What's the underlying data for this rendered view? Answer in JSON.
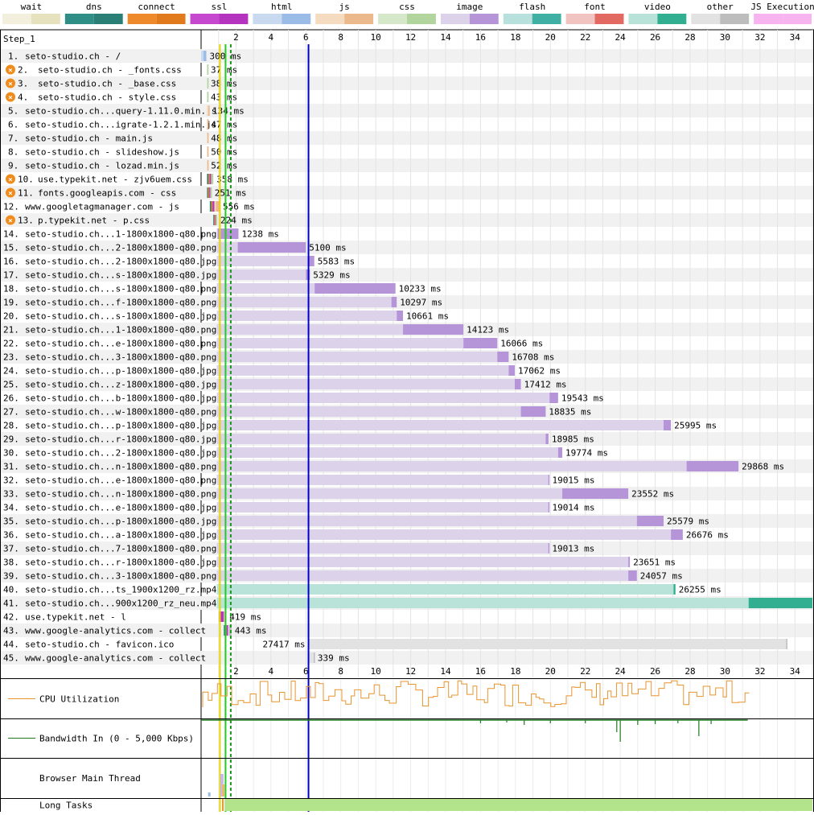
{
  "legend": [
    {
      "label": "wait",
      "light": "#f2f0dc",
      "dark": "#e6e2bd"
    },
    {
      "label": "dns",
      "light": "#2f8f86",
      "dark": "#2a7f77"
    },
    {
      "label": "connect",
      "light": "#ef8a2c",
      "dark": "#e07a1c"
    },
    {
      "label": "ssl",
      "light": "#c548cf",
      "dark": "#b534bf"
    },
    {
      "label": "html",
      "light": "#c8d9f0",
      "dark": "#9bbce6"
    },
    {
      "label": "js",
      "light": "#f5dcc0",
      "dark": "#ebb98b"
    },
    {
      "label": "css",
      "light": "#d5e8c9",
      "dark": "#b2d49d"
    },
    {
      "label": "image",
      "light": "#dcd2ea",
      "dark": "#b595d8"
    },
    {
      "label": "flash",
      "light": "#b8e0dc",
      "dark": "#3fb0a3"
    },
    {
      "label": "font",
      "light": "#f1c4c2",
      "dark": "#e26a63"
    },
    {
      "label": "video",
      "light": "#b9e2d8",
      "dark": "#32ae91"
    },
    {
      "label": "other",
      "light": "#e2e2e2",
      "dark": "#bdbdbd"
    },
    {
      "label": "JS Execution",
      "light": "#f7b4f0",
      "dark": "#f7b4f0"
    }
  ],
  "step_label": "Step_1",
  "chart_data": {
    "type": "waterfall",
    "x_axis": {
      "unit": "seconds",
      "min": 0,
      "max": 35,
      "ticks": [
        2,
        4,
        6,
        8,
        10,
        12,
        14,
        16,
        18,
        20,
        22,
        24,
        26,
        28,
        30,
        32,
        34
      ]
    },
    "markers": {
      "start_render_s": 1.08,
      "dom_interactive_s": 1.4,
      "dom_complete_s": 1.7,
      "onload_s": 6.15
    },
    "requests": [
      {
        "num": "1.",
        "label": "seto-studio.ch - /",
        "type": "html",
        "start": 0,
        "ttfb": 0.14,
        "end": 0.3,
        "duration": "300 ms",
        "blocking": false
      },
      {
        "num": "2.",
        "label": "seto-studio.ch - _fonts.css",
        "type": "css",
        "start": 0.33,
        "ttfb": 0.36,
        "end": 0.37,
        "duration": "37 ms",
        "blocking": true
      },
      {
        "num": "3.",
        "label": "seto-studio.ch - _base.css",
        "type": "css",
        "start": 0.33,
        "ttfb": 0.36,
        "end": 0.37,
        "duration": "38 ms",
        "blocking": true
      },
      {
        "num": "4.",
        "label": "seto-studio.ch - style.css",
        "type": "css",
        "start": 0.33,
        "ttfb": 0.36,
        "end": 0.37,
        "duration": "43 ms",
        "blocking": true
      },
      {
        "num": "5.",
        "label": "seto-studio.ch...query-1.11.0.min.js",
        "type": "js",
        "start": 0.33,
        "ttfb": 0.42,
        "end": 0.46,
        "duration": "134 ms",
        "blocking": false
      },
      {
        "num": "6.",
        "label": "seto-studio.ch...igrate-1.2.1.min.js",
        "type": "js",
        "start": 0.33,
        "ttfb": 0.36,
        "end": 0.38,
        "duration": "47 ms",
        "blocking": false
      },
      {
        "num": "7.",
        "label": "seto-studio.ch - main.js",
        "type": "js",
        "start": 0.33,
        "ttfb": 0.36,
        "end": 0.38,
        "duration": "48 ms",
        "blocking": false
      },
      {
        "num": "8.",
        "label": "seto-studio.ch - slideshow.js",
        "type": "js",
        "start": 0.33,
        "ttfb": 0.36,
        "end": 0.38,
        "duration": "50 ms",
        "blocking": false
      },
      {
        "num": "9.",
        "label": "seto-studio.ch - lozad.min.js",
        "type": "js",
        "start": 0.33,
        "ttfb": 0.36,
        "end": 0.38,
        "duration": "52 ms",
        "blocking": false
      },
      {
        "num": "10.",
        "label": "use.typekit.net - zjv6uem.css",
        "type": "css",
        "start": 0.34,
        "ttfb": 0.6,
        "end": 0.7,
        "duration": "358 ms",
        "blocking": true,
        "dns": [
          0.34,
          0.42
        ],
        "connect": [
          0.42,
          0.5
        ],
        "ssl": [
          0.5,
          0.58
        ]
      },
      {
        "num": "11.",
        "label": "fonts.googleapis.com - css",
        "type": "css",
        "start": 0.34,
        "ttfb": 0.55,
        "end": 0.59,
        "duration": "251 ms",
        "blocking": true,
        "dns": [
          0.34,
          0.4
        ],
        "connect": [
          0.4,
          0.47
        ],
        "ssl": [
          0.47,
          0.53
        ]
      },
      {
        "num": "12.",
        "label": "www.googletagmanager.com - js",
        "type": "js",
        "start": 0.5,
        "ttfb": 0.85,
        "end": 1.06,
        "duration": "556 ms",
        "blocking": false,
        "dns": [
          0.5,
          0.58
        ],
        "connect": [
          0.58,
          0.66
        ],
        "ssl": [
          0.66,
          0.76
        ]
      },
      {
        "num": "13.",
        "label": "p.typekit.net - p.css",
        "type": "css",
        "start": 0.7,
        "ttfb": 0.85,
        "end": 0.92,
        "duration": "224 ms",
        "blocking": true,
        "dns": [
          0.7,
          0.75
        ],
        "connect": [
          0.75,
          0.8
        ],
        "ssl": [
          0.8,
          0.84
        ]
      },
      {
        "num": "14.",
        "label": "seto-studio.ch...1-1800x1800-q80.png",
        "type": "image",
        "start": 0.9,
        "ttfb": 0.95,
        "end": 2.14,
        "duration": "1238 ms",
        "blocking": false
      },
      {
        "num": "15.",
        "label": "seto-studio.ch...2-1800x1800-q80.png",
        "type": "image",
        "start": 0.9,
        "ttfb": 2.1,
        "end": 6.0,
        "duration": "5100 ms",
        "blocking": false
      },
      {
        "num": "16.",
        "label": "seto-studio.ch...2-1800x1800-q80.jpg",
        "type": "image",
        "start": 0.9,
        "ttfb": 6.15,
        "end": 6.48,
        "duration": "5583 ms",
        "blocking": false
      },
      {
        "num": "17.",
        "label": "seto-studio.ch...s-1800x1800-q80.jpg",
        "type": "image",
        "start": 0.9,
        "ttfb": 6.0,
        "end": 6.23,
        "duration": "5329 ms",
        "blocking": false
      },
      {
        "num": "18.",
        "label": "seto-studio.ch...s-1800x1800-q80.png",
        "type": "image",
        "start": 0.9,
        "ttfb": 6.5,
        "end": 11.13,
        "duration": "10233 ms",
        "blocking": false
      },
      {
        "num": "19.",
        "label": "seto-studio.ch...f-1800x1800-q80.png",
        "type": "image",
        "start": 0.9,
        "ttfb": 10.9,
        "end": 11.2,
        "duration": "10297 ms",
        "blocking": false
      },
      {
        "num": "20.",
        "label": "seto-studio.ch...s-1800x1800-q80.jpg",
        "type": "image",
        "start": 0.9,
        "ttfb": 11.2,
        "end": 11.56,
        "duration": "10661 ms",
        "blocking": false
      },
      {
        "num": "21.",
        "label": "seto-studio.ch...1-1800x1800-q80.png",
        "type": "image",
        "start": 0.9,
        "ttfb": 11.56,
        "end": 15.02,
        "duration": "14123 ms",
        "blocking": false
      },
      {
        "num": "22.",
        "label": "seto-studio.ch...e-1800x1800-q80.png",
        "type": "image",
        "start": 0.9,
        "ttfb": 15.02,
        "end": 16.96,
        "duration": "16066 ms",
        "blocking": false
      },
      {
        "num": "23.",
        "label": "seto-studio.ch...3-1800x1800-q80.png",
        "type": "image",
        "start": 0.9,
        "ttfb": 16.96,
        "end": 17.61,
        "duration": "16708 ms",
        "blocking": false
      },
      {
        "num": "24.",
        "label": "seto-studio.ch...p-1800x1800-q80.jpg",
        "type": "image",
        "start": 0.9,
        "ttfb": 17.61,
        "end": 17.96,
        "duration": "17062 ms",
        "blocking": false
      },
      {
        "num": "25.",
        "label": "seto-studio.ch...z-1800x1800-q80.jpg",
        "type": "image",
        "start": 0.9,
        "ttfb": 17.96,
        "end": 18.31,
        "duration": "17412 ms",
        "blocking": false
      },
      {
        "num": "26.",
        "label": "seto-studio.ch...b-1800x1800-q80.jpg",
        "type": "image",
        "start": 0.9,
        "ttfb": 19.95,
        "end": 20.44,
        "duration": "19543 ms",
        "blocking": false
      },
      {
        "num": "27.",
        "label": "seto-studio.ch...w-1800x1800-q80.png",
        "type": "image",
        "start": 0.9,
        "ttfb": 18.31,
        "end": 19.73,
        "duration": "18835 ms",
        "blocking": false
      },
      {
        "num": "28.",
        "label": "seto-studio.ch...p-1800x1800-q80.jpg",
        "type": "image",
        "start": 0.9,
        "ttfb": 26.48,
        "end": 26.9,
        "duration": "25995 ms",
        "blocking": false
      },
      {
        "num": "29.",
        "label": "seto-studio.ch...r-1800x1800-q80.jpg",
        "type": "image",
        "start": 0.9,
        "ttfb": 19.73,
        "end": 19.89,
        "duration": "18985 ms",
        "blocking": false
      },
      {
        "num": "30.",
        "label": "seto-studio.ch...2-1800x1800-q80.jpg",
        "type": "image",
        "start": 0.9,
        "ttfb": 20.44,
        "end": 20.68,
        "duration": "19774 ms",
        "blocking": false
      },
      {
        "num": "31.",
        "label": "seto-studio.ch...n-1800x1800-q80.png",
        "type": "image",
        "start": 0.9,
        "ttfb": 27.8,
        "end": 30.77,
        "duration": "29868 ms",
        "blocking": false
      },
      {
        "num": "32.",
        "label": "seto-studio.ch...e-1800x1800-q80.png",
        "type": "image",
        "start": 0.9,
        "ttfb": 19.88,
        "end": 19.92,
        "duration": "19015 ms",
        "blocking": false
      },
      {
        "num": "33.",
        "label": "seto-studio.ch...n-1800x1800-q80.png",
        "type": "image",
        "start": 0.9,
        "ttfb": 20.68,
        "end": 24.46,
        "duration": "23552 ms",
        "blocking": false
      },
      {
        "num": "34.",
        "label": "seto-studio.ch...e-1800x1800-q80.jpg",
        "type": "image",
        "start": 0.9,
        "ttfb": 19.88,
        "end": 19.92,
        "duration": "19014 ms",
        "blocking": false
      },
      {
        "num": "35.",
        "label": "seto-studio.ch...p-1800x1800-q80.jpg",
        "type": "image",
        "start": 0.9,
        "ttfb": 24.95,
        "end": 26.48,
        "duration": "25579 ms",
        "blocking": false
      },
      {
        "num": "36.",
        "label": "seto-studio.ch...a-1800x1800-q80.jpg",
        "type": "image",
        "start": 0.9,
        "ttfb": 26.9,
        "end": 27.58,
        "duration": "26676 ms",
        "blocking": false
      },
      {
        "num": "37.",
        "label": "seto-studio.ch...7-1800x1800-q80.png",
        "type": "image",
        "start": 0.9,
        "ttfb": 19.88,
        "end": 19.91,
        "duration": "19013 ms",
        "blocking": false
      },
      {
        "num": "38.",
        "label": "seto-studio.ch...r-1800x1800-q80.jpg",
        "type": "image",
        "start": 0.9,
        "ttfb": 24.46,
        "end": 24.55,
        "duration": "23651 ms",
        "blocking": false
      },
      {
        "num": "39.",
        "label": "seto-studio.ch...3-1800x1800-q80.png",
        "type": "image",
        "start": 0.9,
        "ttfb": 24.46,
        "end": 24.95,
        "duration": "24057 ms",
        "blocking": false
      },
      {
        "num": "40.",
        "label": "seto-studio.ch...ts_1900x1200_rz.mp4",
        "type": "video",
        "start": 0.9,
        "ttfb": 27.05,
        "end": 27.16,
        "duration": "26255 ms",
        "blocking": false
      },
      {
        "num": "41.",
        "label": "seto-studio.ch...900x1200_rz_neu.mp4",
        "type": "video",
        "start": 0.9,
        "ttfb": 31.35,
        "end": 35.0,
        "duration": "",
        "blocking": false
      },
      {
        "num": "42.",
        "label": "use.typekit.net - l",
        "type": "font",
        "start": 1.02,
        "ttfb": 1.35,
        "end": 1.44,
        "duration": "419 ms",
        "blocking": false,
        "connect": [
          1.02,
          1.1
        ],
        "ssl": [
          1.1,
          1.3
        ]
      },
      {
        "num": "43.",
        "label": "www.google-analytics.com - collect",
        "type": "other",
        "start": 1.3,
        "ttfb": 1.6,
        "end": 1.74,
        "duration": "443 ms",
        "blocking": false,
        "dns": [
          1.3,
          1.38
        ],
        "connect": [
          1.38,
          1.46
        ],
        "ssl": [
          1.46,
          1.55
        ]
      },
      {
        "num": "44.",
        "label": "seto-studio.ch - favicon.ico",
        "type": "other",
        "start": 6.15,
        "ttfb": 33.5,
        "end": 33.57,
        "duration": "27417 ms",
        "blocking": false,
        "duration_left": true
      },
      {
        "num": "45.",
        "label": "www.google-analytics.com - collect",
        "type": "other",
        "start": 6.15,
        "ttfb": 6.45,
        "end": 6.49,
        "duration": "339 ms",
        "blocking": false
      }
    ]
  },
  "bottom_panels": [
    {
      "label": "CPU Utilization",
      "key": "cpu"
    },
    {
      "label": "Bandwidth In (0 - 5,000 Kbps)",
      "key": "bandwidth"
    },
    {
      "label": "Browser Main Thread",
      "key": "main_thread"
    },
    {
      "label": "Long Tasks",
      "key": "long_tasks"
    }
  ],
  "colors": {
    "cpu": "#e8942f",
    "bandwidth": "#1f7a1f",
    "onload": "#0000cc",
    "start_render": "#22cc22",
    "long_task": "#b3e38a"
  }
}
